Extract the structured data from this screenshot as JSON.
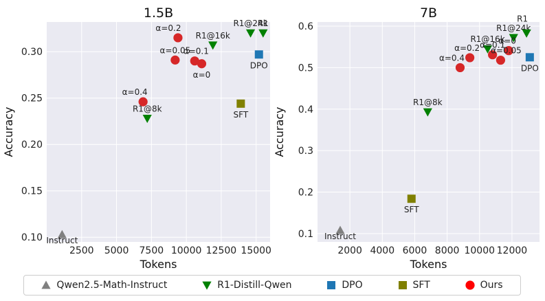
{
  "chart_data": [
    {
      "type": "scatter",
      "title": "1.5B",
      "xlabel": "Tokens",
      "ylabel": "Accuracy",
      "xlim": [
        0,
        16000
      ],
      "ylim": [
        0.095,
        0.332
      ],
      "xticks": [
        2500,
        5000,
        7500,
        10000,
        12500,
        15000
      ],
      "xtick_labels": [
        "2500",
        "5000",
        "7500",
        "10000",
        "12500",
        "15000"
      ],
      "yticks": [
        0.1,
        0.15,
        0.2,
        0.25,
        0.3
      ],
      "ytick_labels": [
        "0.10",
        "0.15",
        "0.20",
        "0.25",
        "0.30"
      ],
      "grid": true,
      "series": [
        {
          "name": "Qwen2.5-Math-Instruct",
          "marker": "triangle-up",
          "color": "#808080",
          "points": [
            {
              "x": 1100,
              "y": 0.103,
              "label": "Instruct"
            }
          ]
        },
        {
          "name": "R1-Distill-Qwen",
          "marker": "triangle-down",
          "color": "#008000",
          "points": [
            {
              "x": 7200,
              "y": 0.228,
              "label": "R1@8k"
            },
            {
              "x": 11900,
              "y": 0.307,
              "label": "R1@16k"
            },
            {
              "x": 14600,
              "y": 0.32,
              "label": "R1@24k"
            },
            {
              "x": 15500,
              "y": 0.32,
              "label": "R1"
            }
          ]
        },
        {
          "name": "DPO",
          "marker": "square",
          "color": "#1f77b4",
          "points": [
            {
              "x": 15200,
              "y": 0.297,
              "label": "DPO"
            }
          ]
        },
        {
          "name": "SFT",
          "marker": "square",
          "color": "#808000",
          "points": [
            {
              "x": 13900,
              "y": 0.244,
              "label": "SFT"
            }
          ]
        },
        {
          "name": "Ours",
          "marker": "circle",
          "color": "#d62728",
          "points": [
            {
              "x": 6900,
              "y": 0.246,
              "label": "α=0.4"
            },
            {
              "x": 9400,
              "y": 0.315,
              "label": "α=0.2"
            },
            {
              "x": 9200,
              "y": 0.291,
              "label": "α=0.05"
            },
            {
              "x": 10600,
              "y": 0.29,
              "label": "α=0.1"
            },
            {
              "x": 11100,
              "y": 0.287,
              "label": "α=0"
            }
          ]
        }
      ]
    },
    {
      "type": "scatter",
      "title": "7B",
      "xlabel": "Tokens",
      "ylabel": "Accuracy",
      "xlim": [
        0,
        13700
      ],
      "ylim": [
        0.08,
        0.61
      ],
      "xticks": [
        2000,
        4000,
        6000,
        8000,
        10000,
        12000
      ],
      "xtick_labels": [
        "2000",
        "4000",
        "6000",
        "8000",
        "10000",
        "12000"
      ],
      "yticks": [
        0.1,
        0.2,
        0.3,
        0.4,
        0.5,
        0.6
      ],
      "ytick_labels": [
        "0.1",
        "0.2",
        "0.3",
        "0.4",
        "0.5",
        "0.6"
      ],
      "grid": true,
      "series": [
        {
          "name": "Qwen2.5-Math-Instruct",
          "marker": "triangle-up",
          "color": "#808080",
          "points": [
            {
              "x": 1400,
              "y": 0.108,
              "label": "Instruct"
            }
          ]
        },
        {
          "name": "R1-Distill-Qwen",
          "marker": "triangle-down",
          "color": "#008000",
          "points": [
            {
              "x": 6800,
              "y": 0.393,
              "label": "R1@8k"
            },
            {
              "x": 10500,
              "y": 0.545,
              "label": "R1@16k"
            },
            {
              "x": 12100,
              "y": 0.572,
              "label": "R1@24k"
            },
            {
              "x": 12900,
              "y": 0.583,
              "label": "R1"
            }
          ]
        },
        {
          "name": "DPO",
          "marker": "square",
          "color": "#1f77b4",
          "points": [
            {
              "x": 13100,
              "y": 0.525,
              "label": "DPO"
            }
          ]
        },
        {
          "name": "SFT",
          "marker": "square",
          "color": "#808000",
          "points": [
            {
              "x": 5800,
              "y": 0.184,
              "label": "SFT"
            }
          ]
        },
        {
          "name": "Ours",
          "marker": "circle",
          "color": "#d62728",
          "points": [
            {
              "x": 8800,
              "y": 0.5,
              "label": "α=0.4"
            },
            {
              "x": 9400,
              "y": 0.524,
              "label": "α=0.2"
            },
            {
              "x": 10800,
              "y": 0.531,
              "label": "α=0.1"
            },
            {
              "x": 11800,
              "y": 0.541,
              "label": "α=0"
            },
            {
              "x": 11300,
              "y": 0.518,
              "label": "α=0.05"
            }
          ]
        }
      ]
    }
  ],
  "legend": {
    "position": "bottom",
    "items": [
      {
        "label": "Qwen2.5-Math-Instruct",
        "marker": "triangle-up",
        "color": "#808080"
      },
      {
        "label": "R1-Distill-Qwen",
        "marker": "triangle-down",
        "color": "#008000"
      },
      {
        "label": "DPO",
        "marker": "square",
        "color": "#1f77b4"
      },
      {
        "label": "SFT",
        "marker": "square",
        "color": "#808000"
      },
      {
        "label": "Ours",
        "marker": "circle",
        "color": "#ff0000"
      }
    ]
  }
}
